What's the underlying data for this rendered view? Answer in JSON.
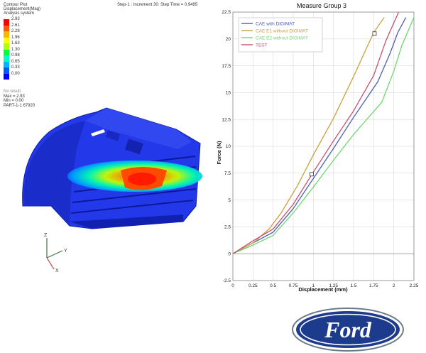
{
  "fea": {
    "title_lines": [
      "Contour Plot",
      "Displacement(Mag)",
      "Analysis system"
    ],
    "step_info": "Step-1 : Increment    30: Step Time =   0.9495",
    "legend": [
      {
        "value": "2.93",
        "color": "#ff0000"
      },
      {
        "value": "2.61",
        "color": "#ff5a00"
      },
      {
        "value": "2.28",
        "color": "#ffb400"
      },
      {
        "value": "1.96",
        "color": "#ffff00"
      },
      {
        "value": "1.63",
        "color": "#b4ff00"
      },
      {
        "value": "1.30",
        "color": "#00ff3c"
      },
      {
        "value": "0.98",
        "color": "#00ffc8"
      },
      {
        "value": "0.65",
        "color": "#00b4ff"
      },
      {
        "value": "0.33",
        "color": "#005aff"
      },
      {
        "value": "0.00",
        "color": "#0000ff"
      }
    ],
    "no_result": "No result",
    "max": "Max = 2.93",
    "min": "Min = 0.00",
    "part": "PART-1-1 67920",
    "triad": {
      "z": "Z",
      "y": "Y",
      "x": "X"
    }
  },
  "chart_data": {
    "type": "line",
    "title": "Measure Group 3",
    "xlabel": "Displacement (mm)",
    "ylabel": "Force (N)",
    "xlim": [
      0,
      2.25
    ],
    "ylim": [
      -2.5,
      22.5
    ],
    "xticks": [
      "0",
      "0.25",
      "0.5",
      "0.75",
      "1",
      "1.25",
      "1.5",
      "1.75",
      "2",
      "2.25"
    ],
    "yticks": [
      "-2.5",
      "0",
      "2.5",
      "5",
      "7.5",
      "10",
      "12.5",
      "15",
      "17.5",
      "20",
      "22.5"
    ],
    "grid": true,
    "legend_position": "top-left",
    "series": [
      {
        "name": "CAE with DIGIMAT",
        "color": "#4a5fb0",
        "x": [
          0,
          0.25,
          0.5,
          0.75,
          1.0,
          1.25,
          1.5,
          1.8,
          1.95,
          2.05,
          2.15
        ],
        "y": [
          0,
          1.0,
          2.0,
          4.2,
          7.0,
          9.8,
          12.7,
          16.0,
          18.6,
          20.6,
          22.0
        ]
      },
      {
        "name": "CAE E1 without DIGIMAT",
        "color": "#c9a040",
        "x": [
          0,
          0.25,
          0.45,
          0.6,
          0.8,
          1.0,
          1.25,
          1.5,
          1.75,
          1.88
        ],
        "y": [
          0,
          1.0,
          2.3,
          3.8,
          6.3,
          9.2,
          12.6,
          16.5,
          20.6,
          22.0
        ]
      },
      {
        "name": "CAE E2 without DIGIMAT",
        "color": "#6fd66f",
        "x": [
          0,
          0.25,
          0.5,
          0.75,
          1.0,
          1.25,
          1.5,
          1.85,
          2.0,
          2.1,
          2.25
        ],
        "y": [
          0,
          0.8,
          1.7,
          3.8,
          6.2,
          8.7,
          11.1,
          14.1,
          17.0,
          19.4,
          22.0
        ]
      },
      {
        "name": "TEST",
        "color": "#c8506e",
        "x": [
          0,
          0.25,
          0.5,
          0.75,
          1.0,
          1.25,
          1.5,
          1.75,
          1.9,
          2.0,
          2.06
        ],
        "y": [
          0,
          1.2,
          2.3,
          4.6,
          7.6,
          10.5,
          13.3,
          16.6,
          19.8,
          21.5,
          22.5
        ]
      }
    ],
    "markers": [
      {
        "series": "TEST",
        "x": 0.98,
        "y": 7.4
      },
      {
        "series": "CAE E1 without DIGIMAT",
        "x": 1.76,
        "y": 20.5
      }
    ]
  },
  "logo": {
    "text": "Ford"
  }
}
